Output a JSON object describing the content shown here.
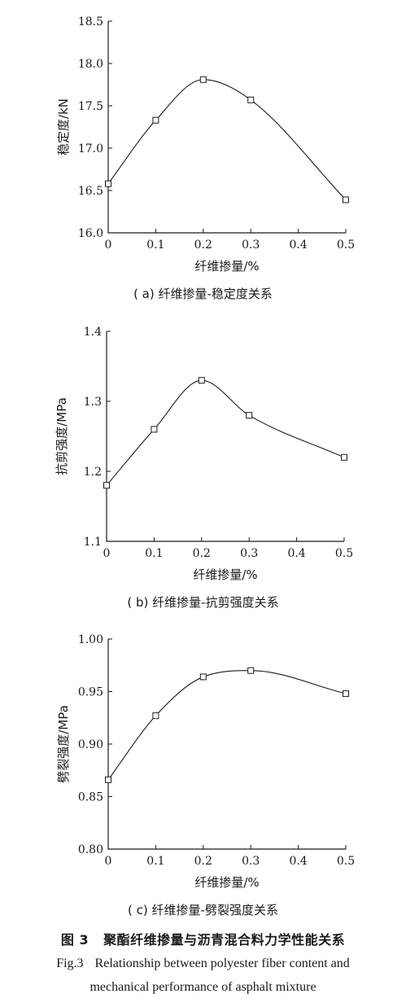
{
  "chart_data": [
    {
      "type": "line",
      "panel_caption": "( a)  纤维掺量-稳定度关系",
      "xlabel": "纤维掺量/%",
      "ylabel": "稳定度/kN",
      "xlim": [
        0,
        0.5
      ],
      "ylim": [
        16.0,
        18.5
      ],
      "x_ticks": [
        "0",
        "0.1",
        "0.2",
        "0.3",
        "0.4",
        "0.5"
      ],
      "y_ticks": [
        "16.0",
        "16.5",
        "17.0",
        "17.5",
        "18.0",
        "18.5"
      ],
      "x": [
        0,
        0.1,
        0.2,
        0.3,
        0.5
      ],
      "y": [
        16.58,
        17.33,
        17.81,
        17.57,
        16.39
      ],
      "marker": "square",
      "grid": false
    },
    {
      "type": "line",
      "panel_caption": "( b)  纤维掺量-抗剪强度关系",
      "xlabel": "纤维掺量/%",
      "ylabel": "抗剪强度/MPa",
      "xlim": [
        0,
        0.5
      ],
      "ylim": [
        1.1,
        1.4
      ],
      "x_ticks": [
        "0",
        "0.1",
        "0.2",
        "0.3",
        "0.4",
        "0.5"
      ],
      "y_ticks": [
        "1.1",
        "1.2",
        "1.3",
        "1.4"
      ],
      "x": [
        0,
        0.1,
        0.2,
        0.3,
        0.5
      ],
      "y": [
        1.18,
        1.26,
        1.33,
        1.28,
        1.22
      ],
      "marker": "square",
      "grid": false
    },
    {
      "type": "line",
      "panel_caption": "( c)  纤维掺量-劈裂强度关系",
      "xlabel": "纤维掺量/%",
      "ylabel": "劈裂强度/MPa",
      "xlim": [
        0,
        0.5
      ],
      "ylim": [
        0.8,
        1.0
      ],
      "x_ticks": [
        "0",
        "0.1",
        "0.2",
        "0.3",
        "0.4",
        "0.5"
      ],
      "y_ticks": [
        "0.80",
        "0.85",
        "0.90",
        "0.95",
        "1.00"
      ],
      "x": [
        0,
        0.1,
        0.2,
        0.3,
        0.5
      ],
      "y": [
        0.866,
        0.927,
        0.964,
        0.97,
        0.948
      ],
      "marker": "square",
      "grid": false
    }
  ],
  "figure_caption": {
    "cn_number": "图 3",
    "cn_title": "聚酯纤维掺量与沥青混合料力学性能关系",
    "en_number": "Fig.3",
    "en_line1": "Relationship between polyester fiber content and",
    "en_line2": "mechanical performance of asphalt mixture"
  }
}
